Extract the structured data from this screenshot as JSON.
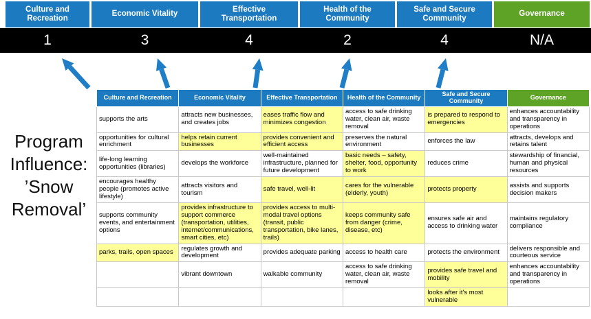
{
  "colors": {
    "header_blue": "#1b7ac0",
    "header_green": "#5ea226",
    "highlight_yellow": "#ffff99",
    "score_bar_bg": "#000000",
    "arrow_blue": "#1f7ec5",
    "grid_border": "#c8c8c8"
  },
  "program_title": {
    "text": "Program Influence: ’Snow Removal’",
    "lines": [
      "Program",
      "Influence:",
      "’Snow",
      "Removal’"
    ]
  },
  "scoreboard": {
    "categories": [
      {
        "label": "Culture and Recreation",
        "score": "1",
        "theme": "blue"
      },
      {
        "label": "Economic Vitality",
        "score": "3",
        "theme": "blue"
      },
      {
        "label": "Effective Transportation",
        "score": "4",
        "theme": "blue"
      },
      {
        "label": "Health of the Community",
        "score": "2",
        "theme": "blue"
      },
      {
        "label": "Safe and Secure Community",
        "score": "4",
        "theme": "blue"
      },
      {
        "label": "Governance",
        "score": "N/A",
        "theme": "green"
      }
    ]
  },
  "arrows": {
    "description": "blue arrows pointing from matrix columns up to the scores",
    "column_indexes": [
      0,
      1,
      2,
      3,
      4
    ]
  },
  "matrix": {
    "headers": [
      {
        "label": "Culture and Recreation",
        "theme": "blue"
      },
      {
        "label": "Economic Vitality",
        "theme": "blue"
      },
      {
        "label": "Effective Transportation",
        "theme": "blue"
      },
      {
        "label": "Health of the Community",
        "theme": "blue"
      },
      {
        "label": "Safe and Secure Community",
        "theme": "blue"
      },
      {
        "label": "Governance",
        "theme": "green"
      }
    ],
    "rows": [
      [
        {
          "text": "supports the arts",
          "highlight": false
        },
        {
          "text": "attracts new businesses, and creates jobs",
          "highlight": false
        },
        {
          "text": "eases traffic flow and minimizes congestion",
          "highlight": true
        },
        {
          "text": "access to safe drinking water, clean air, waste removal",
          "highlight": false
        },
        {
          "text": "is prepared to respond to emergencies",
          "highlight": true
        },
        {
          "text": "enhances accountability and transparency in operations",
          "highlight": false
        }
      ],
      [
        {
          "text": "opportunities for cultural enrichment",
          "highlight": false
        },
        {
          "text": "helps retain current businesses",
          "highlight": true
        },
        {
          "text": "provides convenient and efficient access",
          "highlight": true
        },
        {
          "text": "preserves the natural environment",
          "highlight": false
        },
        {
          "text": "enforces the law",
          "highlight": false
        },
        {
          "text": "attracts, develops and retains talent",
          "highlight": false
        }
      ],
      [
        {
          "text": "life-long learning opportunities (libraries)",
          "highlight": false
        },
        {
          "text": "develops the workforce",
          "highlight": false
        },
        {
          "text": "well-maintained infrastructure, planned for future development",
          "highlight": false
        },
        {
          "text": "basic needs – safety, shelter, food, opportunity to work",
          "highlight": true
        },
        {
          "text": "reduces crime",
          "highlight": false
        },
        {
          "text": "stewardship of financial, human and physical resources",
          "highlight": false
        }
      ],
      [
        {
          "text": "encourages healthy people (promotes active lifestyle)",
          "highlight": false
        },
        {
          "text": "attracts visitors and tourism",
          "highlight": false
        },
        {
          "text": "safe travel, well-lit",
          "highlight": true
        },
        {
          "text": "cares for the vulnerable (elderly, youth)",
          "highlight": true
        },
        {
          "text": "protects property",
          "highlight": true
        },
        {
          "text": "assists and supports decision makers",
          "highlight": false
        }
      ],
      [
        {
          "text": "supports community events, and entertainment options",
          "highlight": false
        },
        {
          "text": "provides infrastructure to support commerce (transportation, utilities, internet/communications, smart cities, etc)",
          "highlight": true
        },
        {
          "text": "provides access to multi-modal travel options (transit, public transportation, bike lanes, trails)",
          "highlight": true
        },
        {
          "text": "keeps community safe from danger (crime, disease, etc)",
          "highlight": true
        },
        {
          "text": "ensures safe air and access to drinking water",
          "highlight": false
        },
        {
          "text": "maintains regulatory compliance",
          "highlight": false
        }
      ],
      [
        {
          "text": "parks, trails, open spaces",
          "highlight": true
        },
        {
          "text": "regulates growth and development",
          "highlight": false
        },
        {
          "text": "provides adequate parking",
          "highlight": false
        },
        {
          "text": "access to health care",
          "highlight": false
        },
        {
          "text": "protects the environment",
          "highlight": false
        },
        {
          "text": "delivers responsible and courteous service",
          "highlight": false
        }
      ],
      [
        {
          "text": "",
          "highlight": false
        },
        {
          "text": "vibrant downtown",
          "highlight": false
        },
        {
          "text": "walkable community",
          "highlight": false
        },
        {
          "text": "access to safe drinking water, clean air, waste removal",
          "highlight": false
        },
        {
          "text": "provides safe travel and mobility",
          "highlight": true
        },
        {
          "text": "enhances accountability and transparency in operations",
          "highlight": false
        }
      ],
      [
        {
          "text": "",
          "highlight": false
        },
        {
          "text": "",
          "highlight": false
        },
        {
          "text": "",
          "highlight": false
        },
        {
          "text": "",
          "highlight": false
        },
        {
          "text": "looks after it's most vulnerable",
          "highlight": true
        },
        {
          "text": "",
          "highlight": false
        }
      ]
    ]
  }
}
